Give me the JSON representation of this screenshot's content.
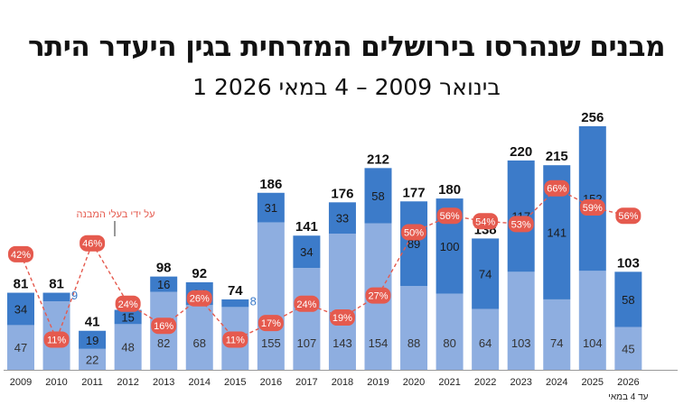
{
  "chart_data": {
    "type": "bar",
    "title": "מבנים שנהרסו בירושלים המזרחית בגין היעדר היתר",
    "subtitle": "1 בינואר 2009 – 4 במאי 2026",
    "categories": [
      "2009",
      "2010",
      "2011",
      "2012",
      "2013",
      "2014",
      "2015",
      "2016",
      "2017",
      "2018",
      "2019",
      "2020",
      "2021",
      "2022",
      "2023",
      "2024",
      "2025",
      "2026"
    ],
    "last_category_note": "עד 4 במאי",
    "series": [
      {
        "values": [
          47,
          72,
          22,
          48,
          82,
          68,
          66,
          155,
          107,
          143,
          154,
          88,
          80,
          64,
          103,
          74,
          104,
          45
        ],
        "color": "#8eaee0"
      },
      {
        "values": [
          34,
          9,
          19,
          15,
          16,
          24,
          8,
          31,
          34,
          33,
          58,
          89,
          100,
          74,
          117,
          141,
          152,
          58
        ],
        "color": "#3c7bc9"
      }
    ],
    "totals": [
      81,
      81,
      41,
      63,
      98,
      92,
      74,
      186,
      141,
      176,
      212,
      177,
      180,
      138,
      220,
      215,
      256,
      103
    ],
    "percent_line": {
      "values": [
        "42%",
        "11%",
        "46%",
        "24%",
        "16%",
        "26%",
        "11%",
        "17%",
        "24%",
        "19%",
        "27%",
        "50%",
        "56%",
        "54%",
        "53%",
        "66%",
        "59%",
        "56%"
      ],
      "annotation": "על ידי בעלי המבנה",
      "color": "#e55a4e"
    },
    "ylim": [
      0,
      260
    ]
  }
}
